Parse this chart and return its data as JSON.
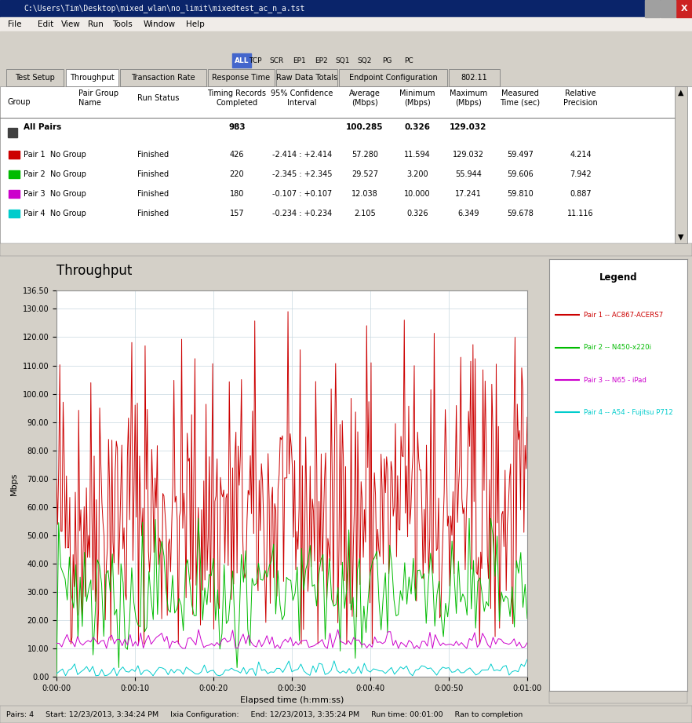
{
  "title": "Throughput",
  "xlabel": "Elapsed time (h:mm:ss)",
  "ylabel": "Mbps",
  "ylim": [
    0,
    136.5
  ],
  "xlim": [
    0,
    3600
  ],
  "xtick_positions": [
    0,
    600,
    1200,
    1800,
    2400,
    3000,
    3600
  ],
  "xtick_labels": [
    "0:00:00",
    "0:00:10",
    "0:00:20",
    "0:00:30",
    "0:00:40",
    "0:00:50",
    "0:01:00"
  ],
  "ytick_vals": [
    0,
    10,
    20,
    30,
    40,
    50,
    60,
    70,
    80,
    90,
    100,
    110,
    120,
    130,
    136.5
  ],
  "bg_color": "#d4d0c8",
  "titlebar_color": "#0a246a",
  "plot_bg_color": "#ffffff",
  "grid_color": "#c8d8e0",
  "legend_title": "Legend",
  "series": [
    {
      "label": "Pair 1 -- AC867-ACERS7",
      "color": "#cc0000",
      "avg": 57.28,
      "min": 11.594,
      "max": 129.032,
      "n": 426
    },
    {
      "label": "Pair 2 -- N450-x220i",
      "color": "#00bb00",
      "avg": 29.527,
      "min": 3.2,
      "max": 55.944,
      "n": 220
    },
    {
      "label": "Pair 3 -- N65 - iPad",
      "color": "#cc00cc",
      "avg": 12.038,
      "min": 10.0,
      "max": 17.241,
      "n": 180
    },
    {
      "label": "Pair 4 -- A54 - Fujitsu P712",
      "color": "#00cccc",
      "avg": 2.105,
      "min": 0.326,
      "max": 6.349,
      "n": 157
    }
  ],
  "titlebar_text": "C:\\Users\\Tim\\Desktop\\mixed_wlan\\no_limit\\mixedtest_ac_n_a.tst",
  "menu_items": [
    "File",
    "Edit",
    "View",
    "Run",
    "Tools",
    "Window",
    "Help"
  ],
  "tabs": [
    "Test Setup",
    "Throughput",
    "Transaction Rate",
    "Response Time",
    "Raw Data Totals",
    "Endpoint Configuration",
    "802.11"
  ],
  "active_tab": 1,
  "table_headers": [
    "Group",
    "Pair Group\nName",
    "Run Status",
    "Timing Records\nCompleted",
    "95% Confidence\nInterval",
    "Average\n(Mbps)",
    "Minimum\n(Mbps)",
    "Maximum\n(Mbps)",
    "Measured\nTime (sec)",
    "Relative\nPrecision"
  ],
  "allpairs_row": [
    "983",
    "100.285",
    "0.326",
    "129.032"
  ],
  "pair_rows": [
    [
      "Pair 1",
      "No Group",
      "Finished",
      "426",
      "-2.414 : +2.414",
      "57.280",
      "11.594",
      "129.032",
      "59.497",
      "4.214",
      "#cc0000"
    ],
    [
      "Pair 2",
      "No Group",
      "Finished",
      "220",
      "-2.345 : +2.345",
      "29.527",
      "3.200",
      "55.944",
      "59.606",
      "7.942",
      "#00bb00"
    ],
    [
      "Pair 3",
      "No Group",
      "Finished",
      "180",
      "-0.107 : +0.107",
      "12.038",
      "10.000",
      "17.241",
      "59.810",
      "0.887",
      "#cc00cc"
    ],
    [
      "Pair 4",
      "No Group",
      "Finished",
      "157",
      "-0.234 : +0.234",
      "2.105",
      "0.326",
      "6.349",
      "59.678",
      "11.116",
      "#00cccc"
    ]
  ],
  "status_bar": "Pairs: 4     Start: 12/23/2013, 3:34:24 PM     Ixia Configuration:     End: 12/23/2013, 3:35:24 PM     Run time: 00:01:00     Ran to completion"
}
